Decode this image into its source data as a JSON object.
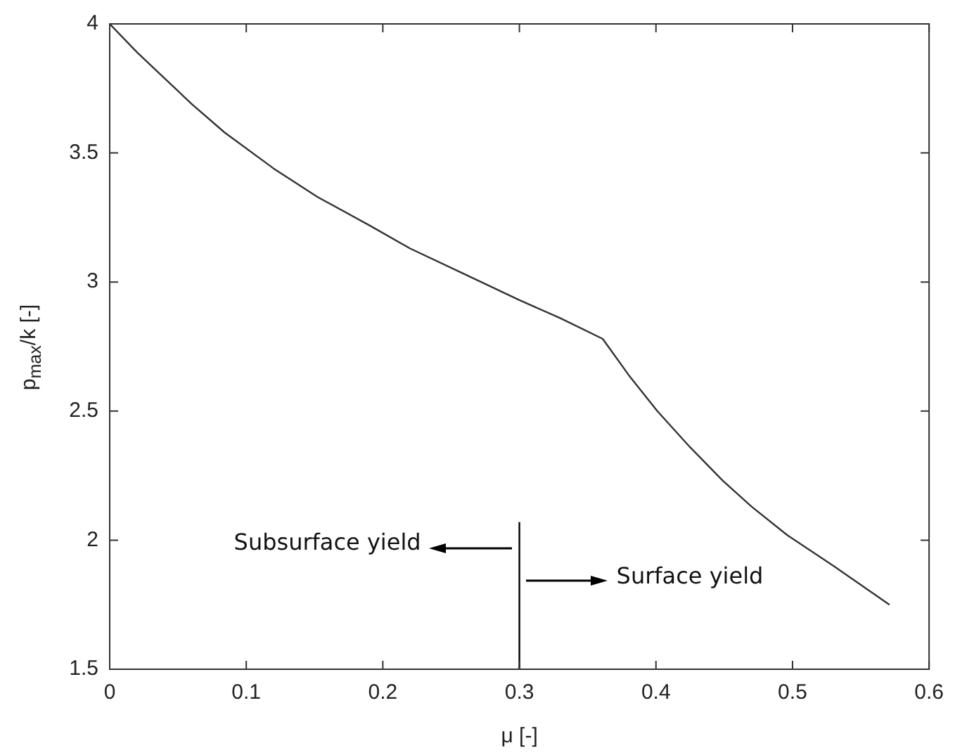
{
  "chart_data": {
    "type": "line",
    "xlabel": "μ [-]",
    "ylabel": "p$_{max}$/k [-]",
    "xlim": [
      0,
      0.6
    ],
    "xticks": [
      0,
      0.1,
      0.2,
      0.3,
      0.4,
      0.5,
      0.6
    ],
    "ylim": [
      1.5,
      4
    ],
    "yticks": [
      1.5,
      2,
      2.5,
      3,
      3.5,
      4
    ],
    "grid": false,
    "legend": false,
    "marker": "none",
    "line_style": "solid",
    "series": [
      {
        "color": "#333333",
        "x": [
          0,
          0.02,
          0.04,
          0.06,
          0.084,
          0.12,
          0.152,
          0.19,
          0.22,
          0.26,
          0.3,
          0.33,
          0.361,
          0.38,
          0.401,
          0.425,
          0.449,
          0.47,
          0.496,
          0.53,
          0.571
        ],
        "values": [
          4,
          3.89,
          3.79,
          3.69,
          3.58,
          3.44,
          3.33,
          3.22,
          3.13,
          3.03,
          2.93,
          2.86,
          2.78,
          2.64,
          2.5,
          2.36,
          2.23,
          2.13,
          2.02,
          1.9,
          1.75
        ]
      },
      {
        "color": "#000000",
        "x": [
          0.3,
          0.3
        ],
        "values": [
          1.5,
          2.07
        ]
      }
    ],
    "annotations": [
      "Subsurface yield",
      "Surface yield"
    ]
  }
}
